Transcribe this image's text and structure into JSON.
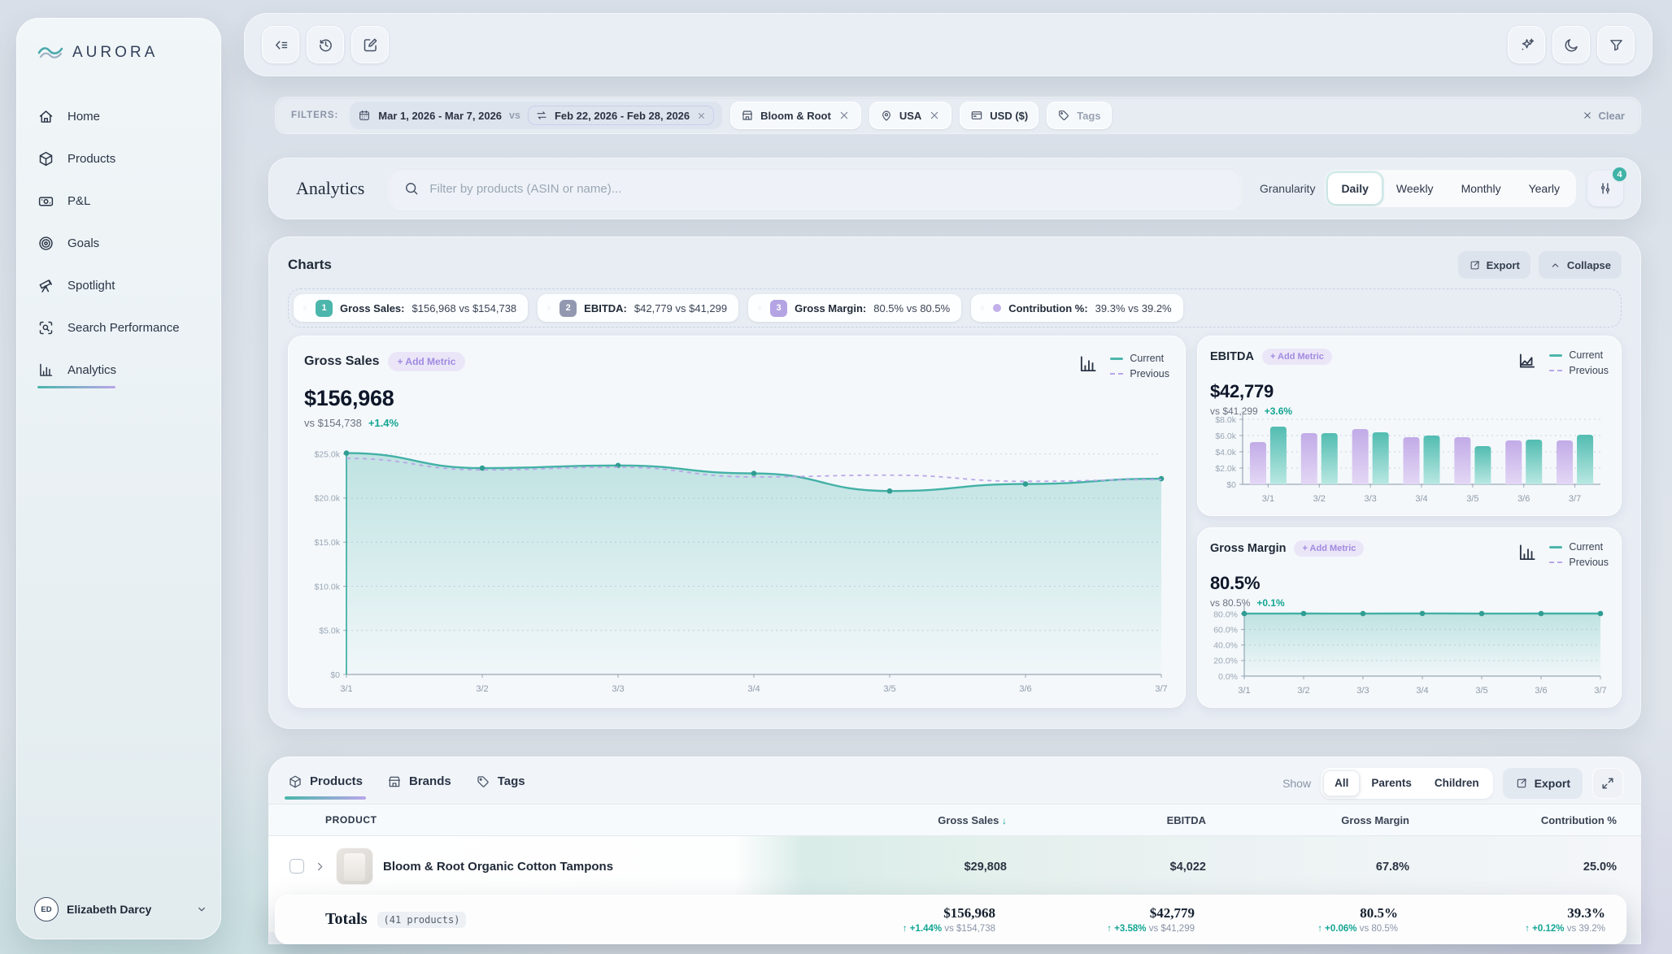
{
  "app": {
    "name": "AURORA"
  },
  "sidebar": {
    "items": [
      {
        "label": "Home",
        "icon": "home"
      },
      {
        "label": "Products",
        "icon": "box"
      },
      {
        "label": "P&L",
        "icon": "banknote"
      },
      {
        "label": "Goals",
        "icon": "target"
      },
      {
        "label": "Spotlight",
        "icon": "telescope"
      },
      {
        "label": "Search Performance",
        "icon": "scan-search"
      },
      {
        "label": "Analytics",
        "icon": "bar-chart"
      }
    ],
    "active_item": "Analytics",
    "user": {
      "name": "Elizabeth Darcy",
      "initials": "ED"
    }
  },
  "filters": {
    "label": "FILTERS:",
    "date_primary": "Mar 1, 2026 - Mar 7, 2026",
    "vs": "vs",
    "date_secondary": "Feb 22, 2026 - Feb 28, 2026",
    "chips": [
      {
        "label": "Bloom & Root",
        "icon": "store",
        "removable": true
      },
      {
        "label": "USA",
        "icon": "pin",
        "removable": true
      },
      {
        "label": "USD ($)",
        "icon": "card",
        "removable": false
      },
      {
        "label": "Tags",
        "icon": "tag",
        "removable": false
      }
    ],
    "clear_label": "Clear"
  },
  "analytics_bar": {
    "title": "Analytics",
    "search_placeholder": "Filter by products (ASIN or name)...",
    "granularity_label": "Granularity",
    "granularity_options": [
      "Daily",
      "Weekly",
      "Monthly",
      "Yearly"
    ],
    "granularity_selected": "Daily",
    "settings_badge": "4"
  },
  "charts": {
    "section_title": "Charts",
    "export_label": "Export",
    "collapse_label": "Collapse",
    "metric_chips": [
      {
        "badge": "1",
        "badge_color": "#4db6ac",
        "label": "Gross Sales:",
        "value": "$156,968 vs $154,738"
      },
      {
        "badge": "2",
        "badge_color": "#9298b0",
        "label": "EBITDA:",
        "value": "$42,779 vs $41,299"
      },
      {
        "badge": "3",
        "badge_color": "#b4a4e4",
        "label": "Gross Margin:",
        "value": "80.5% vs 80.5%"
      },
      {
        "badge": "dot",
        "badge_color": "#c3b0ea",
        "label": "Contribution %:",
        "value": "39.3% vs 39.2%"
      }
    ],
    "legend": {
      "current": "Current",
      "previous": "Previous"
    },
    "gross_sales": {
      "title": "Gross Sales",
      "add_metric": "+ Add Metric",
      "value": "$156,968",
      "vs": "vs $154,738",
      "delta": "+1.4%"
    },
    "ebitda": {
      "title": "EBITDA",
      "add_metric": "+ Add Metric",
      "value": "$42,779",
      "vs": "vs $41,299",
      "delta": "+3.6%"
    },
    "gross_margin": {
      "title": "Gross Margin",
      "add_metric": "+ Add Metric",
      "value": "80.5%",
      "vs": "vs 80.5%",
      "delta": "+0.1%"
    }
  },
  "chart_data": [
    {
      "id": "gross-sales",
      "type": "line",
      "title": "Gross Sales current vs previous",
      "x": [
        "3/1",
        "3/2",
        "3/3",
        "3/4",
        "3/5",
        "3/6",
        "3/7"
      ],
      "ymax": 25800,
      "left_axis": false,
      "yticks": [
        {
          "v": 25000,
          "label": "$25.0k"
        },
        {
          "v": 20000,
          "label": "$20.0k"
        },
        {
          "v": 15000,
          "label": "$15.0k"
        },
        {
          "v": 10000,
          "label": "$10.0k"
        },
        {
          "v": 5000,
          "label": "$5.0k"
        },
        {
          "v": 0,
          "label": "$0"
        }
      ],
      "series": [
        {
          "name": "Current",
          "color": "#43b1a6",
          "values": [
            25100,
            23400,
            23700,
            22800,
            20800,
            21600,
            22200
          ],
          "area": true,
          "dots": true,
          "edge": true,
          "dot_color": "#2f9d92"
        },
        {
          "name": "Previous",
          "color": "#b9a6e8",
          "values": [
            24500,
            23200,
            23500,
            22400,
            22600,
            21900,
            22100
          ],
          "dash": true
        }
      ]
    },
    {
      "id": "ebitda",
      "type": "bar",
      "title": "EBITDA current vs previous",
      "x": [
        "3/1",
        "3/2",
        "3/3",
        "3/4",
        "3/5",
        "3/6",
        "3/7"
      ],
      "ymax": 8800,
      "left_axis": true,
      "yticks": [
        {
          "v": 8000,
          "label": "$8.0k"
        },
        {
          "v": 6000,
          "label": "$6.0k"
        },
        {
          "v": 4000,
          "label": "$4.0k"
        },
        {
          "v": 2000,
          "label": "$2.0k"
        },
        {
          "v": 0,
          "label": "$0"
        }
      ],
      "series": [
        {
          "name": "Previous",
          "color_top": "#c2abe7",
          "color_bottom": "#e3d7f5",
          "values": [
            5200,
            6300,
            6800,
            5800,
            5800,
            5400,
            5400
          ]
        },
        {
          "name": "Current",
          "color_top": "#52bcb1",
          "color_bottom": "#b9e8e2",
          "values": [
            7100,
            6300,
            6400,
            6000,
            4700,
            5500,
            6100
          ]
        }
      ]
    },
    {
      "id": "gross-margin",
      "type": "line",
      "title": "Gross Margin current vs previous",
      "x": [
        "3/1",
        "3/2",
        "3/3",
        "3/4",
        "3/5",
        "3/6",
        "3/7"
      ],
      "ymax": 92,
      "left_axis": true,
      "yticks": [
        {
          "v": 80,
          "label": "80.0%"
        },
        {
          "v": 60,
          "label": "60.0%"
        },
        {
          "v": 40,
          "label": "40.0%"
        },
        {
          "v": 20,
          "label": "20.0%"
        },
        {
          "v": 0,
          "label": "0.0%"
        }
      ],
      "series": [
        {
          "name": "Previous",
          "color": "#b9a6e8",
          "values": [
            80.2,
            80.4,
            80.3,
            80.5,
            80.3,
            80.4,
            80.4
          ],
          "dash": true
        },
        {
          "name": "Current",
          "color": "#43b1a6",
          "values": [
            80.4,
            80.5,
            80.4,
            80.6,
            80.4,
            80.5,
            80.5
          ],
          "area": true,
          "dots": true,
          "dot_color": "#2f9d92"
        }
      ]
    }
  ],
  "table": {
    "tabs": [
      {
        "label": "Products",
        "icon": "box"
      },
      {
        "label": "Brands",
        "icon": "store"
      },
      {
        "label": "Tags",
        "icon": "tag"
      }
    ],
    "active_tab": "Products",
    "show_label": "Show",
    "show_options": [
      "All",
      "Parents",
      "Children"
    ],
    "show_selected": "All",
    "export_label": "Export",
    "columns": [
      "PRODUCT",
      "Gross Sales",
      "EBITDA",
      "Gross Margin",
      "Contribution %"
    ],
    "sort_column": "Gross Sales",
    "sort_arrow": "↓",
    "rows": [
      {
        "product": "Bloom & Root Organic Cotton Tampons",
        "gross_sales": "$29,808",
        "ebitda": "$4,022",
        "gross_margin": "67.8%",
        "contribution": "25.0%"
      }
    ],
    "totals": {
      "label": "Totals",
      "count": "(41 products)",
      "cells": [
        {
          "value": "$156,968",
          "delta": "↑ +1.44%",
          "vs": "vs $154,738"
        },
        {
          "value": "$42,779",
          "delta": "↑ +3.58%",
          "vs": "vs $41,299"
        },
        {
          "value": "80.5%",
          "delta": "↑ +0.06%",
          "vs": "vs 80.5%"
        },
        {
          "value": "39.3%",
          "delta": "↑ +0.12%",
          "vs": "vs 39.2%"
        }
      ]
    }
  }
}
